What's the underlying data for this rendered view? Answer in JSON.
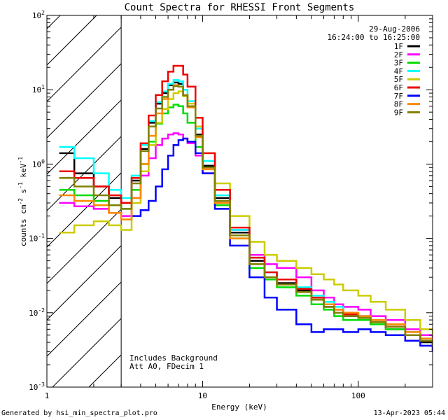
{
  "chart_data": {
    "type": "line",
    "title": "Count Spectra for RHESSI Front Segments",
    "xlabel": "Energy (keV)",
    "ylabel_parts": [
      "counts cm",
      "-2",
      " s",
      "-1",
      " keV",
      "-1"
    ],
    "xscale": "log",
    "yscale": "log",
    "xlim": [
      1,
      300
    ],
    "ylim": [
      0.001,
      100
    ],
    "x_ticks": [
      {
        "value": 1,
        "label": "1"
      },
      {
        "value": 10,
        "label": "10"
      },
      {
        "value": 100,
        "label": "100"
      }
    ],
    "y_ticks": [
      {
        "value": 0.001,
        "base": "10",
        "exp": "-3"
      },
      {
        "value": 0.01,
        "base": "10",
        "exp": "-2"
      },
      {
        "value": 0.1,
        "base": "10",
        "exp": "-1"
      },
      {
        "value": 1,
        "base": "10",
        "exp": "0"
      },
      {
        "value": 10,
        "base": "10",
        "exp": "1"
      },
      {
        "value": 100,
        "base": "10",
        "exp": "2"
      }
    ],
    "date": "29-Aug-2006",
    "time_range": "16:24:00 to 16:25:00",
    "excluded_region_max_energy": 3,
    "annotation_lines": [
      "Includes Background",
      "Att A0, FDecim 1"
    ],
    "series": [
      {
        "name": "1F",
        "color": "#000000",
        "x": [
          1.2,
          1.5,
          2,
          2.5,
          3,
          3.5,
          4,
          4.5,
          5,
          5.5,
          6,
          6.5,
          7,
          7.5,
          8,
          9,
          10,
          12,
          15,
          20,
          25,
          30,
          40,
          50,
          60,
          70,
          80,
          100,
          120,
          150,
          200,
          250,
          300
        ],
        "y": [
          1.4,
          0.75,
          0.5,
          0.35,
          0.3,
          0.6,
          1.6,
          3.6,
          6.5,
          9,
          11.5,
          12.5,
          12,
          8.5,
          6,
          2.5,
          0.95,
          0.35,
          0.12,
          0.05,
          0.03,
          0.025,
          0.02,
          0.015,
          0.012,
          0.01,
          0.009,
          0.009,
          0.007,
          0.006,
          0.005,
          0.004,
          0.0035
        ]
      },
      {
        "name": "2F",
        "color": "#ff00ff",
        "x": [
          1.2,
          1.5,
          2,
          2.5,
          3,
          3.5,
          4,
          4.5,
          5,
          5.5,
          6,
          6.5,
          7,
          7.5,
          8,
          9,
          10,
          12,
          15,
          20,
          25,
          30,
          40,
          50,
          60,
          70,
          80,
          100,
          120,
          150,
          200,
          250,
          300
        ],
        "y": [
          0.3,
          0.27,
          0.25,
          0.22,
          0.2,
          0.35,
          0.7,
          1.2,
          1.8,
          2.2,
          2.5,
          2.6,
          2.5,
          2.2,
          1.9,
          1.3,
          0.75,
          0.3,
          0.13,
          0.06,
          0.045,
          0.04,
          0.03,
          0.02,
          0.016,
          0.013,
          0.012,
          0.011,
          0.009,
          0.008,
          0.006,
          0.005,
          0.0045
        ]
      },
      {
        "name": "3F",
        "color": "#00dd00",
        "x": [
          1.2,
          1.5,
          2,
          2.5,
          3,
          3.5,
          4,
          4.5,
          5,
          5.5,
          6,
          6.5,
          7,
          7.5,
          8,
          9,
          10,
          12,
          15,
          20,
          25,
          30,
          40,
          50,
          60,
          70,
          80,
          100,
          120,
          150,
          200,
          250,
          300
        ],
        "y": [
          0.45,
          0.38,
          0.32,
          0.28,
          0.25,
          0.45,
          1.0,
          2.0,
          3.5,
          4.8,
          5.8,
          6.3,
          6,
          4.8,
          3.6,
          1.7,
          0.75,
          0.28,
          0.1,
          0.04,
          0.028,
          0.022,
          0.017,
          0.013,
          0.011,
          0.009,
          0.008,
          0.008,
          0.007,
          0.006,
          0.005,
          0.0042,
          0.0038
        ]
      },
      {
        "name": "4F",
        "color": "#00ffff",
        "x": [
          1.2,
          1.5,
          2,
          2.5,
          3,
          3.5,
          4,
          4.5,
          5,
          5.5,
          6,
          6.5,
          7,
          7.5,
          8,
          9,
          10,
          12,
          15,
          20,
          25,
          30,
          40,
          50,
          60,
          70,
          80,
          100,
          120,
          150,
          200,
          250,
          300
        ],
        "y": [
          1.7,
          1.2,
          0.75,
          0.45,
          0.35,
          0.7,
          1.8,
          3.8,
          6.8,
          9.5,
          12,
          13.5,
          13,
          10,
          7,
          3,
          1.1,
          0.38,
          0.13,
          0.055,
          0.035,
          0.028,
          0.022,
          0.017,
          0.014,
          0.012,
          0.01,
          0.009,
          0.008,
          0.007,
          0.0055,
          0.0045,
          0.004
        ]
      },
      {
        "name": "5F",
        "color": "#cccc00",
        "x": [
          1.2,
          1.5,
          2,
          2.5,
          3,
          3.5,
          4,
          4.5,
          5,
          5.5,
          6,
          6.5,
          7,
          7.5,
          8,
          9,
          10,
          12,
          15,
          20,
          25,
          30,
          40,
          50,
          60,
          70,
          80,
          100,
          120,
          150,
          200,
          250,
          300
        ],
        "y": [
          0.12,
          0.15,
          0.17,
          0.15,
          0.13,
          0.3,
          0.8,
          1.8,
          3.6,
          5.5,
          7.5,
          9,
          9.5,
          8.2,
          6.5,
          3.2,
          1.4,
          0.55,
          0.2,
          0.09,
          0.06,
          0.05,
          0.04,
          0.033,
          0.028,
          0.024,
          0.02,
          0.017,
          0.014,
          0.011,
          0.008,
          0.006,
          0.005
        ]
      },
      {
        "name": "6F",
        "color": "#ee0000",
        "x": [
          1.2,
          1.5,
          2,
          2.5,
          3,
          3.5,
          4,
          4.5,
          5,
          5.5,
          6,
          6.5,
          7,
          7.5,
          8,
          9,
          10,
          12,
          15,
          20,
          25,
          30,
          40,
          50,
          60,
          70,
          80,
          100,
          120,
          150,
          200,
          250,
          300
        ],
        "y": [
          0.8,
          0.65,
          0.5,
          0.38,
          0.3,
          0.65,
          1.9,
          4.5,
          8.5,
          13,
          17.5,
          21,
          21,
          16,
          11,
          4.2,
          1.4,
          0.45,
          0.14,
          0.055,
          0.035,
          0.028,
          0.021,
          0.016,
          0.013,
          0.011,
          0.0095,
          0.0085,
          0.0075,
          0.0065,
          0.005,
          0.0042,
          0.0036
        ]
      },
      {
        "name": "7F",
        "color": "#0000ff",
        "x": [
          3.5,
          4,
          4.5,
          5,
          5.5,
          6,
          6.5,
          7,
          7.5,
          8,
          9,
          10,
          12,
          15,
          20,
          25,
          30,
          40,
          50,
          60,
          70,
          80,
          100,
          120,
          150,
          200,
          250,
          300
        ],
        "y": [
          0.2,
          0.24,
          0.32,
          0.5,
          0.85,
          1.3,
          1.8,
          2.1,
          2.2,
          2.0,
          1.4,
          0.75,
          0.25,
          0.08,
          0.03,
          0.016,
          0.011,
          0.007,
          0.0055,
          0.006,
          0.006,
          0.0055,
          0.006,
          0.0055,
          0.005,
          0.0042,
          0.0036,
          0.003
        ]
      },
      {
        "name": "8F",
        "color": "#ff8800",
        "x": [
          1.2,
          1.5,
          2,
          2.5,
          3,
          3.5,
          4,
          4.5,
          5,
          5.5,
          6,
          6.5,
          7,
          7.5,
          8,
          9,
          10,
          12,
          15,
          20,
          25,
          30,
          40,
          50,
          60,
          70,
          80,
          100,
          120,
          150,
          200,
          250,
          300
        ],
        "y": [
          0.38,
          0.32,
          0.28,
          0.22,
          0.18,
          0.35,
          1.0,
          2.4,
          4.8,
          7.5,
          10,
          11.5,
          11,
          8.5,
          5.8,
          2.3,
          0.85,
          0.3,
          0.1,
          0.045,
          0.03,
          0.024,
          0.019,
          0.015,
          0.013,
          0.011,
          0.01,
          0.009,
          0.008,
          0.007,
          0.0055,
          0.0045,
          0.004
        ]
      },
      {
        "name": "9F",
        "color": "#808000",
        "x": [
          1.2,
          1.5,
          2,
          2.5,
          3,
          3.5,
          4,
          4.5,
          5,
          5.5,
          6,
          6.5,
          7,
          7.5,
          8,
          9,
          10,
          12,
          15,
          20,
          25,
          30,
          40,
          50,
          60,
          70,
          80,
          100,
          120,
          150,
          200,
          250,
          300
        ],
        "y": [
          0.65,
          0.5,
          0.38,
          0.28,
          0.25,
          0.55,
          1.5,
          3.2,
          5.6,
          8,
          10,
          11.2,
          11,
          8.4,
          6,
          2.4,
          0.9,
          0.32,
          0.11,
          0.045,
          0.03,
          0.024,
          0.019,
          0.015,
          0.012,
          0.01,
          0.009,
          0.0085,
          0.0075,
          0.0065,
          0.005,
          0.0042,
          0.0036
        ]
      }
    ]
  },
  "footer": {
    "left": "Generated by hsi_min_spectra_plot.pro",
    "right": "13-Apr-2023 05:44"
  }
}
